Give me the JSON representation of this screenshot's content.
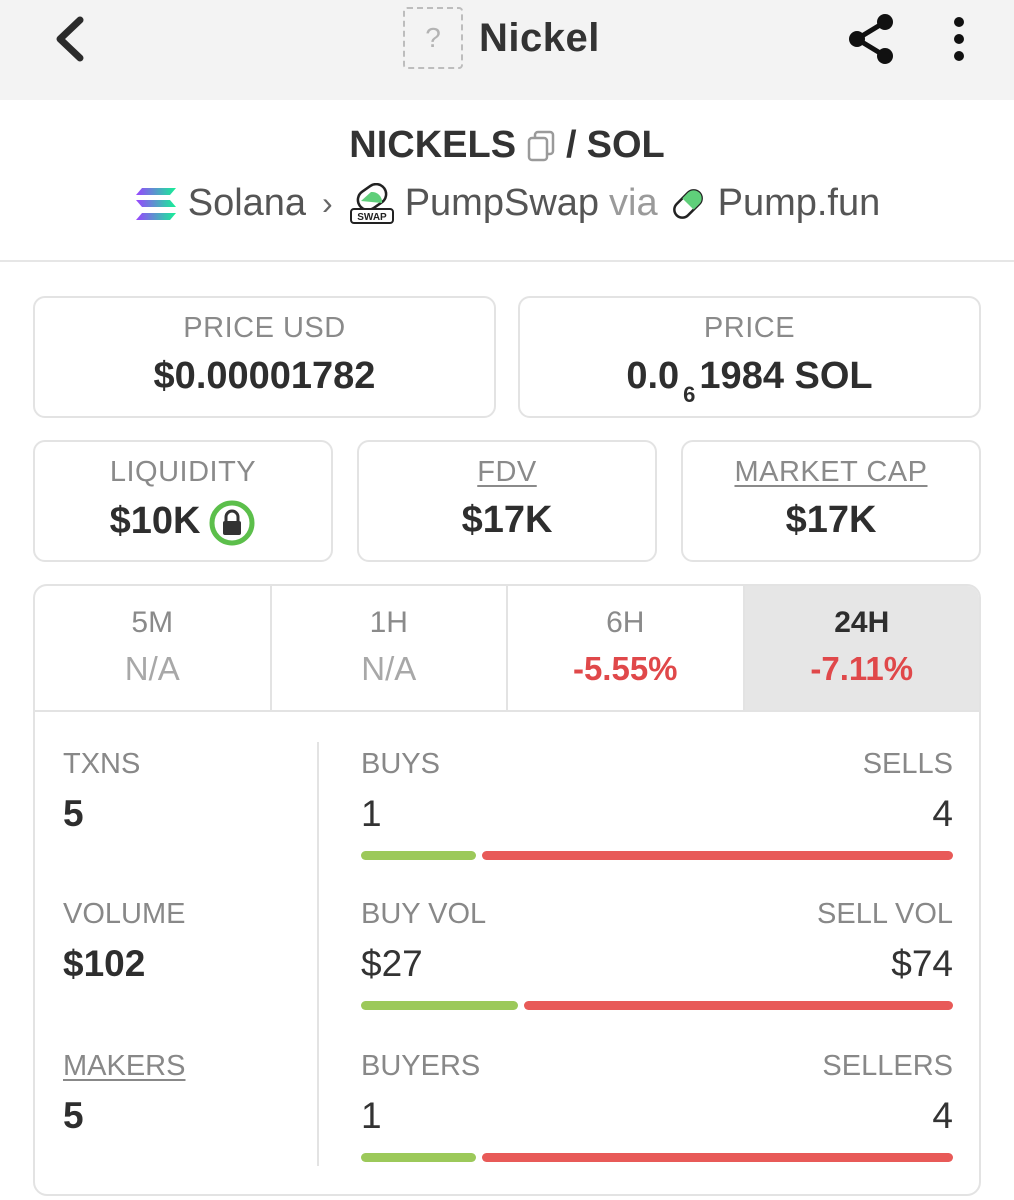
{
  "header": {
    "title": "Nickel",
    "token_placeholder": "?"
  },
  "pair": {
    "base": "NICKELS",
    "separator": "/",
    "quote": "SOL"
  },
  "chain_row": {
    "chain": "Solana",
    "dex": "PumpSwap",
    "dex_badge": "SWAP",
    "via": "via",
    "launchpad": "Pump.fun"
  },
  "prices": {
    "price_usd_label": "PRICE USD",
    "price_usd": "$0.00001782",
    "price_label": "PRICE",
    "price_native_prefix": "0.0",
    "price_native_zeros": "6",
    "price_native_rest": "1984 SOL"
  },
  "metrics": {
    "liquidity_label": "LIQUIDITY",
    "liquidity": "$10K",
    "fdv_label": "FDV",
    "fdv": "$17K",
    "mcap_label": "MARKET CAP",
    "mcap": "$17K"
  },
  "tabs": [
    {
      "label": "5M",
      "change": "N/A",
      "active": false
    },
    {
      "label": "1H",
      "change": "N/A",
      "active": false
    },
    {
      "label": "6H",
      "change": "-5.55%",
      "active": false
    },
    {
      "label": "24H",
      "change": "-7.11%",
      "active": true
    }
  ],
  "stats": {
    "txns_label": "TXNS",
    "txns": "5",
    "volume_label": "VOLUME",
    "volume": "$102",
    "makers_label": "MAKERS",
    "makers": "5",
    "buys_label": "BUYS",
    "buys": "1",
    "sells_label": "SELLS",
    "sells": "4",
    "buy_vol_label": "BUY VOL",
    "buy_vol": "$27",
    "sell_vol_label": "SELL VOL",
    "sell_vol": "$74",
    "buyers_label": "BUYERS",
    "buyers": "1",
    "sellers_label": "SELLERS",
    "sellers": "4",
    "buys_share": 0.2,
    "buy_vol_share": 0.27,
    "buyers_share": 0.2
  },
  "colors": {
    "buy": "#9cc95a",
    "sell": "#e85a58",
    "negative": "#e0484a"
  }
}
